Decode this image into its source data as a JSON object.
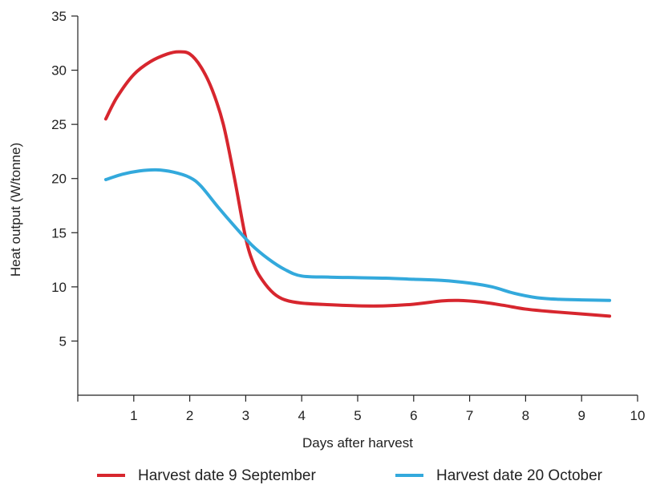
{
  "chart_data": {
    "type": "line",
    "title": "",
    "xlabel": "Days after harvest",
    "ylabel": "Heat output (W/tonne)",
    "xlim": [
      0,
      10
    ],
    "ylim": [
      0,
      35
    ],
    "xticks": [
      1,
      2,
      3,
      4,
      5,
      6,
      7,
      8,
      9,
      10
    ],
    "yticks": [
      5,
      10,
      15,
      20,
      25,
      30,
      35
    ],
    "grid": false,
    "legend_position": "bottom",
    "series": [
      {
        "name": "Harvest date 9 September",
        "color": "#d7262e",
        "x": [
          0.5,
          0.7,
          1.0,
          1.3,
          1.6,
          1.8,
          2.0,
          2.2,
          2.4,
          2.6,
          2.8,
          3.0,
          3.15,
          3.3,
          3.5,
          3.7,
          4.0,
          4.5,
          5.0,
          5.5,
          6.0,
          6.5,
          6.8,
          7.2,
          7.6,
          8.0,
          8.5,
          9.0,
          9.5
        ],
        "y": [
          25.5,
          27.5,
          29.6,
          30.8,
          31.5,
          31.7,
          31.5,
          30.3,
          28.2,
          25.0,
          20.0,
          14.5,
          12.0,
          10.6,
          9.4,
          8.8,
          8.5,
          8.35,
          8.25,
          8.25,
          8.4,
          8.7,
          8.75,
          8.6,
          8.3,
          7.95,
          7.7,
          7.5,
          7.3
        ]
      },
      {
        "name": "Harvest date 20 October",
        "color": "#33a9dc",
        "x": [
          0.5,
          0.8,
          1.1,
          1.4,
          1.7,
          2.0,
          2.2,
          2.5,
          2.8,
          3.1,
          3.4,
          3.7,
          4.0,
          4.5,
          5.0,
          5.5,
          6.0,
          6.5,
          7.0,
          7.4,
          7.8,
          8.2,
          8.6,
          9.0,
          9.5
        ],
        "y": [
          19.9,
          20.4,
          20.7,
          20.8,
          20.6,
          20.1,
          19.3,
          17.4,
          15.6,
          13.9,
          12.6,
          11.6,
          11.0,
          10.9,
          10.85,
          10.8,
          10.7,
          10.6,
          10.35,
          10.0,
          9.4,
          9.0,
          8.85,
          8.8,
          8.75
        ]
      }
    ]
  }
}
